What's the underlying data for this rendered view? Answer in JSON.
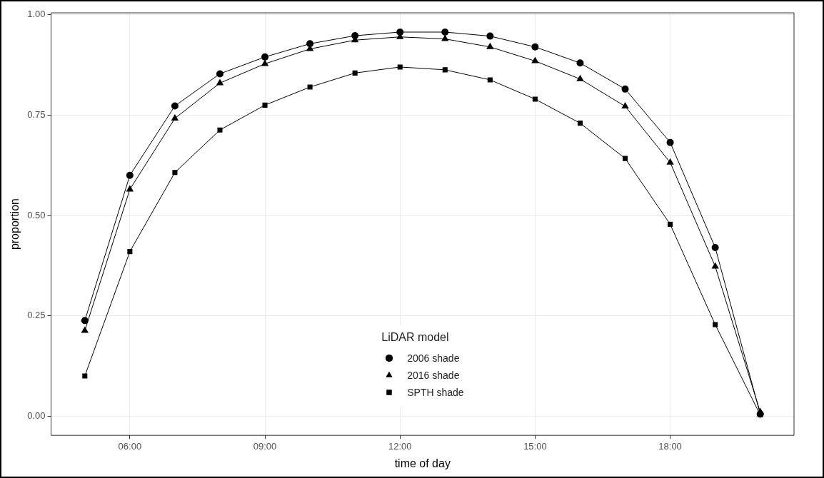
{
  "chart_data": {
    "type": "line",
    "xlabel": "time of day",
    "ylabel": "proportion",
    "legend_title": "LiDAR model",
    "legend": "bottom",
    "grid": true,
    "x": [
      5,
      6,
      7,
      8,
      9,
      10,
      11,
      12,
      13,
      14,
      15,
      16,
      17,
      18,
      19,
      20
    ],
    "xlim": [
      4.25,
      20.75
    ],
    "xticks": [
      {
        "value": 6,
        "label": "06:00"
      },
      {
        "value": 9,
        "label": "09:00"
      },
      {
        "value": 12,
        "label": "12:00"
      },
      {
        "value": 15,
        "label": "15:00"
      },
      {
        "value": 18,
        "label": "18:00"
      }
    ],
    "ylim": [
      -0.048,
      1.005
    ],
    "yticks": [
      {
        "value": 0,
        "label": "0.00"
      },
      {
        "value": 0.25,
        "label": "0.25"
      },
      {
        "value": 0.5,
        "label": "0.50"
      },
      {
        "value": 0.75,
        "label": "0.75"
      },
      {
        "value": 1,
        "label": "1.00"
      }
    ],
    "series": [
      {
        "name": "2006 shade",
        "color": "#000000",
        "marker": "circle",
        "values": [
          0.238,
          0.6,
          0.773,
          0.853,
          0.895,
          0.928,
          0.948,
          0.957,
          0.957,
          0.947,
          0.92,
          0.88,
          0.815,
          0.682,
          0.42,
          0.005
        ]
      },
      {
        "name": "2016 shade",
        "color": "#000000",
        "marker": "triangle",
        "values": [
          0.213,
          0.565,
          0.742,
          0.83,
          0.878,
          0.915,
          0.937,
          0.945,
          0.94,
          0.92,
          0.885,
          0.84,
          0.772,
          0.632,
          0.373,
          0.01
        ]
      },
      {
        "name": "SPTH shade",
        "color": "#000000",
        "marker": "square",
        "values": [
          0.1,
          0.41,
          0.607,
          0.713,
          0.775,
          0.82,
          0.855,
          0.87,
          0.863,
          0.838,
          0.79,
          0.73,
          0.642,
          0.478,
          0.228,
          0.003
        ]
      }
    ]
  }
}
